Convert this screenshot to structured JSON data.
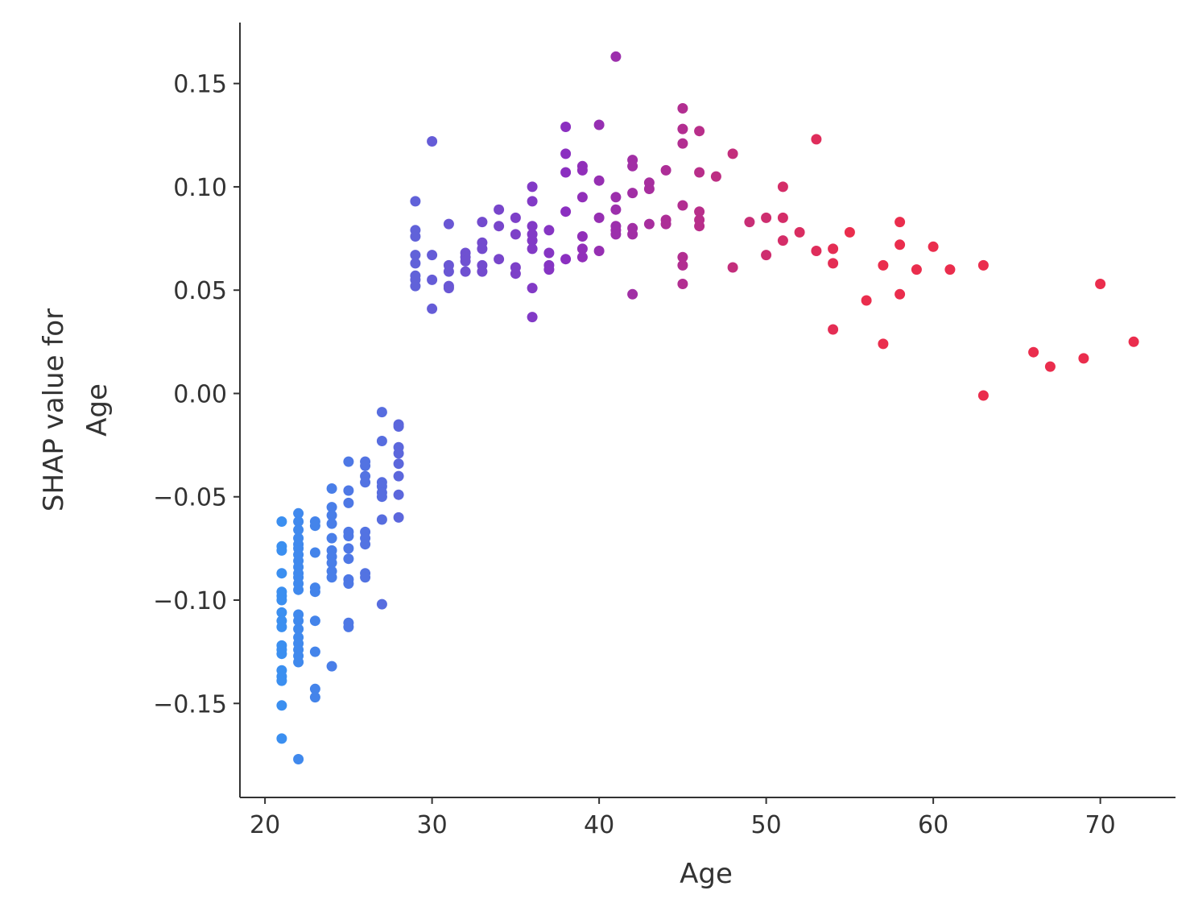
{
  "chart_data": {
    "type": "scatter",
    "title": "",
    "xlabel": "Age",
    "ylabel": [
      "SHAP value for",
      "Age"
    ],
    "xlim": [
      18.5,
      74.5
    ],
    "ylim": [
      -0.1955,
      0.1795
    ],
    "grid": false,
    "legend": "none",
    "x_ticks": [
      20,
      30,
      40,
      50,
      60,
      70
    ],
    "x_tick_labels": [
      "20",
      "30",
      "40",
      "50",
      "60",
      "70"
    ],
    "y_ticks": [
      0.15,
      0.1,
      0.05,
      0.0,
      -0.05,
      -0.1,
      -0.15
    ],
    "y_tick_labels": [
      "0.15",
      "0.10",
      "0.05",
      "0.00",
      "−0.05",
      "−0.10",
      "−0.15"
    ],
    "color_scale": {
      "low": "#3b8ff0",
      "mid": "#8b2fc0",
      "high": "#ea2d4d",
      "x_low": 21,
      "x_high": 55
    },
    "points": [
      [
        21,
        -0.062
      ],
      [
        21,
        -0.074
      ],
      [
        21,
        -0.076
      ],
      [
        21,
        -0.087
      ],
      [
        21,
        -0.096
      ],
      [
        21,
        -0.098
      ],
      [
        21,
        -0.1
      ],
      [
        21,
        -0.106
      ],
      [
        21,
        -0.11
      ],
      [
        21,
        -0.113
      ],
      [
        21,
        -0.122
      ],
      [
        21,
        -0.124
      ],
      [
        21,
        -0.126
      ],
      [
        21,
        -0.134
      ],
      [
        21,
        -0.137
      ],
      [
        21,
        -0.139
      ],
      [
        21,
        -0.151
      ],
      [
        21,
        -0.167
      ],
      [
        22,
        -0.058
      ],
      [
        22,
        -0.062
      ],
      [
        22,
        -0.066
      ],
      [
        22,
        -0.07
      ],
      [
        22,
        -0.073
      ],
      [
        22,
        -0.075
      ],
      [
        22,
        -0.078
      ],
      [
        22,
        -0.081
      ],
      [
        22,
        -0.084
      ],
      [
        22,
        -0.087
      ],
      [
        22,
        -0.089
      ],
      [
        22,
        -0.092
      ],
      [
        22,
        -0.095
      ],
      [
        22,
        -0.107
      ],
      [
        22,
        -0.11
      ],
      [
        22,
        -0.114
      ],
      [
        22,
        -0.118
      ],
      [
        22,
        -0.121
      ],
      [
        22,
        -0.124
      ],
      [
        22,
        -0.127
      ],
      [
        22,
        -0.13
      ],
      [
        22,
        -0.177
      ],
      [
        23,
        -0.062
      ],
      [
        23,
        -0.064
      ],
      [
        23,
        -0.077
      ],
      [
        23,
        -0.094
      ],
      [
        23,
        -0.096
      ],
      [
        23,
        -0.11
      ],
      [
        23,
        -0.125
      ],
      [
        23,
        -0.143
      ],
      [
        23,
        -0.147
      ],
      [
        24,
        -0.046
      ],
      [
        24,
        -0.055
      ],
      [
        24,
        -0.059
      ],
      [
        24,
        -0.063
      ],
      [
        24,
        -0.07
      ],
      [
        24,
        -0.076
      ],
      [
        24,
        -0.079
      ],
      [
        24,
        -0.082
      ],
      [
        24,
        -0.086
      ],
      [
        24,
        -0.089
      ],
      [
        24,
        -0.132
      ],
      [
        25,
        -0.033
      ],
      [
        25,
        -0.047
      ],
      [
        25,
        -0.053
      ],
      [
        25,
        -0.067
      ],
      [
        25,
        -0.069
      ],
      [
        25,
        -0.075
      ],
      [
        25,
        -0.08
      ],
      [
        25,
        -0.09
      ],
      [
        25,
        -0.092
      ],
      [
        25,
        -0.111
      ],
      [
        25,
        -0.113
      ],
      [
        26,
        -0.033
      ],
      [
        26,
        -0.035
      ],
      [
        26,
        -0.04
      ],
      [
        26,
        -0.043
      ],
      [
        26,
        -0.067
      ],
      [
        26,
        -0.07
      ],
      [
        26,
        -0.073
      ],
      [
        26,
        -0.087
      ],
      [
        26,
        -0.089
      ],
      [
        27,
        -0.009
      ],
      [
        27,
        -0.023
      ],
      [
        27,
        -0.043
      ],
      [
        27,
        -0.045
      ],
      [
        27,
        -0.048
      ],
      [
        27,
        -0.05
      ],
      [
        27,
        -0.061
      ],
      [
        27,
        -0.102
      ],
      [
        28,
        -0.015
      ],
      [
        28,
        -0.016
      ],
      [
        28,
        -0.026
      ],
      [
        28,
        -0.029
      ],
      [
        28,
        -0.034
      ],
      [
        28,
        -0.04
      ],
      [
        28,
        -0.049
      ],
      [
        28,
        -0.06
      ],
      [
        29,
        0.093
      ],
      [
        29,
        0.079
      ],
      [
        29,
        0.076
      ],
      [
        29,
        0.067
      ],
      [
        29,
        0.063
      ],
      [
        29,
        0.057
      ],
      [
        29,
        0.055
      ],
      [
        29,
        0.052
      ],
      [
        30,
        0.122
      ],
      [
        30,
        0.067
      ],
      [
        30,
        0.055
      ],
      [
        30,
        0.041
      ],
      [
        31,
        0.082
      ],
      [
        31,
        0.062
      ],
      [
        31,
        0.059
      ],
      [
        31,
        0.052
      ],
      [
        31,
        0.051
      ],
      [
        32,
        0.068
      ],
      [
        32,
        0.066
      ],
      [
        32,
        0.064
      ],
      [
        32,
        0.059
      ],
      [
        33,
        0.083
      ],
      [
        33,
        0.073
      ],
      [
        33,
        0.07
      ],
      [
        33,
        0.062
      ],
      [
        33,
        0.059
      ],
      [
        34,
        0.089
      ],
      [
        34,
        0.081
      ],
      [
        34,
        0.065
      ],
      [
        35,
        0.085
      ],
      [
        35,
        0.077
      ],
      [
        35,
        0.061
      ],
      [
        35,
        0.058
      ],
      [
        36,
        0.1
      ],
      [
        36,
        0.093
      ],
      [
        36,
        0.081
      ],
      [
        36,
        0.077
      ],
      [
        36,
        0.074
      ],
      [
        36,
        0.07
      ],
      [
        36,
        0.051
      ],
      [
        36,
        0.037
      ],
      [
        37,
        0.079
      ],
      [
        37,
        0.068
      ],
      [
        37,
        0.062
      ],
      [
        37,
        0.06
      ],
      [
        38,
        0.129
      ],
      [
        38,
        0.116
      ],
      [
        38,
        0.107
      ],
      [
        38,
        0.088
      ],
      [
        38,
        0.065
      ],
      [
        39,
        0.11
      ],
      [
        39,
        0.108
      ],
      [
        39,
        0.095
      ],
      [
        39,
        0.076
      ],
      [
        39,
        0.07
      ],
      [
        39,
        0.066
      ],
      [
        40,
        0.13
      ],
      [
        40,
        0.103
      ],
      [
        40,
        0.085
      ],
      [
        40,
        0.069
      ],
      [
        41,
        0.163
      ],
      [
        41,
        0.095
      ],
      [
        41,
        0.089
      ],
      [
        41,
        0.081
      ],
      [
        41,
        0.079
      ],
      [
        41,
        0.077
      ],
      [
        42,
        0.113
      ],
      [
        42,
        0.11
      ],
      [
        42,
        0.097
      ],
      [
        42,
        0.08
      ],
      [
        42,
        0.077
      ],
      [
        42,
        0.048
      ],
      [
        43,
        0.102
      ],
      [
        43,
        0.099
      ],
      [
        43,
        0.082
      ],
      [
        44,
        0.108
      ],
      [
        44,
        0.084
      ],
      [
        44,
        0.082
      ],
      [
        45,
        0.138
      ],
      [
        45,
        0.128
      ],
      [
        45,
        0.121
      ],
      [
        45,
        0.091
      ],
      [
        45,
        0.066
      ],
      [
        45,
        0.062
      ],
      [
        45,
        0.053
      ],
      [
        46,
        0.127
      ],
      [
        46,
        0.107
      ],
      [
        46,
        0.088
      ],
      [
        46,
        0.084
      ],
      [
        46,
        0.081
      ],
      [
        47,
        0.105
      ],
      [
        48,
        0.116
      ],
      [
        48,
        0.061
      ],
      [
        49,
        0.083
      ],
      [
        50,
        0.085
      ],
      [
        50,
        0.067
      ],
      [
        51,
        0.1
      ],
      [
        51,
        0.085
      ],
      [
        51,
        0.074
      ],
      [
        52,
        0.078
      ],
      [
        53,
        0.123
      ],
      [
        53,
        0.069
      ],
      [
        54,
        0.07
      ],
      [
        54,
        0.063
      ],
      [
        54,
        0.031
      ],
      [
        55,
        0.078
      ],
      [
        56,
        0.045
      ],
      [
        57,
        0.062
      ],
      [
        57,
        0.024
      ],
      [
        58,
        0.083
      ],
      [
        58,
        0.072
      ],
      [
        58,
        0.048
      ],
      [
        59,
        0.06
      ],
      [
        60,
        0.071
      ],
      [
        61,
        0.06
      ],
      [
        63,
        0.062
      ],
      [
        63,
        -0.001
      ],
      [
        66,
        0.02
      ],
      [
        67,
        0.013
      ],
      [
        69,
        0.017
      ],
      [
        70,
        0.053
      ],
      [
        72,
        0.025
      ]
    ]
  }
}
